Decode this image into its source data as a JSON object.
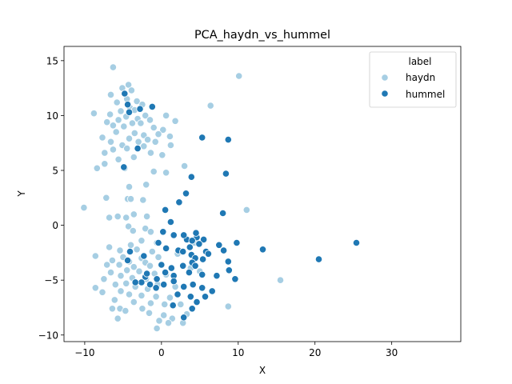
{
  "chart_data": {
    "type": "scatter",
    "title": "PCA_haydn_vs_hummel",
    "xlabel": "X",
    "ylabel": "Y",
    "xlim": [
      -12.7,
      39.0
    ],
    "ylim": [
      -10.6,
      16.3
    ],
    "xticks": [
      -10,
      0,
      10,
      20,
      30
    ],
    "yticks": [
      -10,
      -5,
      0,
      5,
      10,
      15
    ],
    "grid": false,
    "legend": {
      "title": "label",
      "placement": "top-right",
      "entries": [
        {
          "label": "haydn",
          "color": "#a6cee3"
        },
        {
          "label": "hummel",
          "color": "#1f78b4"
        }
      ]
    },
    "series": [
      {
        "name": "haydn",
        "color": "#a6cee3",
        "points": [
          [
            -6.3,
            14.4
          ],
          [
            10.1,
            13.6
          ],
          [
            -4.3,
            12.8
          ],
          [
            -5.1,
            12.5
          ],
          [
            -3.9,
            12.3
          ],
          [
            -4.8,
            12.0
          ],
          [
            -6.6,
            11.9
          ],
          [
            -4.5,
            11.5
          ],
          [
            -3.2,
            11.3
          ],
          [
            -5.8,
            11.2
          ],
          [
            -2.5,
            11.0
          ],
          [
            6.4,
            10.9
          ],
          [
            -4.1,
            10.7
          ],
          [
            -3.5,
            10.5
          ],
          [
            -5.3,
            10.4
          ],
          [
            -8.8,
            10.2
          ],
          [
            -6.7,
            10.1
          ],
          [
            -2.1,
            10.0
          ],
          [
            -4.6,
            9.9
          ],
          [
            -3.1,
            9.7
          ],
          [
            -5.6,
            9.6
          ],
          [
            -1.5,
            9.6
          ],
          [
            0.6,
            10.0
          ],
          [
            -7.1,
            9.4
          ],
          [
            -3.8,
            9.3
          ],
          [
            -2.7,
            9.3
          ],
          [
            1.8,
            9.5
          ],
          [
            -6.3,
            9.1
          ],
          [
            -4.9,
            9.0
          ],
          [
            -1.0,
            8.9
          ],
          [
            0.2,
            8.7
          ],
          [
            -5.9,
            8.5
          ],
          [
            -3.5,
            8.4
          ],
          [
            -2.3,
            8.2
          ],
          [
            -0.4,
            8.3
          ],
          [
            1.1,
            8.1
          ],
          [
            -7.7,
            8.0
          ],
          [
            -4.2,
            7.9
          ],
          [
            -1.8,
            7.8
          ],
          [
            -6.6,
            7.6
          ],
          [
            -3.0,
            7.6
          ],
          [
            -0.8,
            7.6
          ],
          [
            1.2,
            7.3
          ],
          [
            -5.1,
            7.3
          ],
          [
            -2.3,
            7.2
          ],
          [
            -4.5,
            7.0
          ],
          [
            -6.3,
            6.9
          ],
          [
            -7.4,
            6.6
          ],
          [
            -1.4,
            6.6
          ],
          [
            0.1,
            6.4
          ],
          [
            -3.6,
            6.2
          ],
          [
            -5.6,
            6.0
          ],
          [
            -7.4,
            5.6
          ],
          [
            -8.4,
            5.2
          ],
          [
            -4.8,
            5.2
          ],
          [
            -1.0,
            4.9
          ],
          [
            0.6,
            4.8
          ],
          [
            3.0,
            5.4
          ],
          [
            -4.2,
            3.5
          ],
          [
            -2.0,
            3.7
          ],
          [
            -4.4,
            2.4
          ],
          [
            -7.2,
            2.5
          ],
          [
            -2.4,
            2.3
          ],
          [
            -4.0,
            2.4
          ],
          [
            -10.1,
            1.6
          ],
          [
            11.1,
            1.4
          ],
          [
            -3.6,
            1.0
          ],
          [
            -6.8,
            0.7
          ],
          [
            -5.7,
            0.8
          ],
          [
            -4.6,
            0.7
          ],
          [
            -1.9,
            0.8
          ],
          [
            -4.3,
            -0.1
          ],
          [
            -2.1,
            -0.3
          ],
          [
            -3.7,
            -0.5
          ],
          [
            -1.4,
            -0.6
          ],
          [
            -2.6,
            -1.4
          ],
          [
            -0.6,
            -1.6
          ],
          [
            -4.0,
            -1.8
          ],
          [
            -6.8,
            -2.0
          ],
          [
            -5.4,
            -2.3
          ],
          [
            -3.2,
            -2.2
          ],
          [
            -1.2,
            -2.4
          ],
          [
            -8.6,
            -2.8
          ],
          [
            -5.0,
            -2.9
          ],
          [
            -2.6,
            -3.0
          ],
          [
            -0.4,
            -2.9
          ],
          [
            -6.4,
            -3.2
          ],
          [
            -4.2,
            -3.3
          ],
          [
            -2.1,
            -3.4
          ],
          [
            -7.1,
            -3.6
          ],
          [
            -5.5,
            -3.6
          ],
          [
            -3.6,
            -3.8
          ],
          [
            -1.5,
            -3.7
          ],
          [
            -4.5,
            -4.1
          ],
          [
            -2.9,
            -4.2
          ],
          [
            -6.6,
            -4.3
          ],
          [
            -0.9,
            -4.4
          ],
          [
            0.6,
            -4.5
          ],
          [
            -5.3,
            -4.6
          ],
          [
            -3.8,
            -4.8
          ],
          [
            -7.5,
            -4.9
          ],
          [
            -2.0,
            -4.9
          ],
          [
            -4.6,
            -5.3
          ],
          [
            -6.0,
            -5.4
          ],
          [
            -0.5,
            -5.4
          ],
          [
            1.8,
            -5.6
          ],
          [
            -3.4,
            -5.6
          ],
          [
            -1.8,
            -5.8
          ],
          [
            -8.6,
            -5.7
          ],
          [
            -5.3,
            -6.0
          ],
          [
            -7.7,
            -6.1
          ],
          [
            -4.2,
            -6.3
          ],
          [
            -2.6,
            -6.4
          ],
          [
            -0.7,
            -6.5
          ],
          [
            1.1,
            -6.6
          ],
          [
            -6.1,
            -6.8
          ],
          [
            -3.6,
            -7.0
          ],
          [
            -1.4,
            -7.1
          ],
          [
            0.4,
            -7.2
          ],
          [
            2.5,
            -7.2
          ],
          [
            -5.4,
            -7.6
          ],
          [
            -2.5,
            -7.6
          ],
          [
            -6.4,
            -7.6
          ],
          [
            -4.7,
            -7.8
          ],
          [
            -1.6,
            -8.0
          ],
          [
            0.3,
            -8.2
          ],
          [
            3.3,
            -8.1
          ],
          [
            -5.7,
            -8.5
          ],
          [
            -0.3,
            -8.7
          ],
          [
            1.4,
            -8.5
          ],
          [
            2.8,
            -8.9
          ],
          [
            -0.6,
            -9.4
          ],
          [
            0.9,
            -8.9
          ],
          [
            8.7,
            -7.4
          ],
          [
            15.5,
            -5.0
          ],
          [
            3.8,
            -3.9
          ],
          [
            5.0,
            -4.2
          ],
          [
            2.1,
            -2.6
          ],
          [
            4.3,
            -1.6
          ]
        ]
      },
      {
        "name": "hummel",
        "color": "#1f78b4",
        "points": [
          [
            -4.8,
            12.0
          ],
          [
            -4.4,
            11.0
          ],
          [
            -1.2,
            10.8
          ],
          [
            -2.8,
            10.6
          ],
          [
            -4.2,
            10.3
          ],
          [
            5.3,
            8.0
          ],
          [
            8.7,
            7.8
          ],
          [
            -3.1,
            7.0
          ],
          [
            8.4,
            4.7
          ],
          [
            -4.9,
            5.3
          ],
          [
            3.9,
            4.4
          ],
          [
            3.2,
            2.9
          ],
          [
            2.3,
            2.1
          ],
          [
            0.5,
            1.4
          ],
          [
            8.0,
            1.1
          ],
          [
            1.2,
            0.3
          ],
          [
            9.8,
            -1.6
          ],
          [
            25.4,
            -1.6
          ],
          [
            7.5,
            -1.8
          ],
          [
            13.2,
            -2.2
          ],
          [
            20.5,
            -3.1
          ],
          [
            3.3,
            -1.3
          ],
          [
            4.6,
            -1.1
          ],
          [
            5.5,
            -1.3
          ],
          [
            4.0,
            -1.4
          ],
          [
            0.2,
            -0.6
          ],
          [
            1.6,
            -0.9
          ],
          [
            2.9,
            -0.9
          ],
          [
            4.5,
            -0.7
          ],
          [
            4.9,
            -1.7
          ],
          [
            3.7,
            -2.0
          ],
          [
            2.2,
            -2.3
          ],
          [
            0.6,
            -2.1
          ],
          [
            -0.4,
            -1.6
          ],
          [
            5.8,
            -2.4
          ],
          [
            2.8,
            -2.4
          ],
          [
            3.9,
            -2.7
          ],
          [
            4.4,
            -3.0
          ],
          [
            4.0,
            -3.4
          ],
          [
            5.4,
            -3.1
          ],
          [
            8.1,
            -2.3
          ],
          [
            6.1,
            -2.6
          ],
          [
            8.7,
            -3.3
          ],
          [
            0.0,
            -3.6
          ],
          [
            1.3,
            -3.9
          ],
          [
            2.8,
            -3.7
          ],
          [
            4.4,
            -3.7
          ],
          [
            3.6,
            -4.3
          ],
          [
            5.3,
            -4.5
          ],
          [
            7.2,
            -4.6
          ],
          [
            8.8,
            -4.1
          ],
          [
            9.6,
            -4.9
          ],
          [
            1.6,
            -4.6
          ],
          [
            0.5,
            -4.3
          ],
          [
            -0.6,
            -4.9
          ],
          [
            -2.1,
            -4.7
          ],
          [
            -4.4,
            -3.2
          ],
          [
            -4.1,
            -2.4
          ],
          [
            -2.3,
            -2.8
          ],
          [
            -1.9,
            -4.4
          ],
          [
            -2.6,
            -5.2
          ],
          [
            -0.7,
            -5.7
          ],
          [
            0.3,
            -5.4
          ],
          [
            1.6,
            -5.1
          ],
          [
            2.9,
            -5.6
          ],
          [
            4.1,
            -5.4
          ],
          [
            5.3,
            -5.7
          ],
          [
            6.6,
            -6.0
          ],
          [
            2.1,
            -6.3
          ],
          [
            3.8,
            -6.5
          ],
          [
            4.6,
            -7.0
          ],
          [
            5.7,
            -6.5
          ],
          [
            4.0,
            -7.6
          ],
          [
            1.5,
            -7.3
          ],
          [
            2.9,
            -8.4
          ],
          [
            -3.4,
            -5.2
          ],
          [
            -1.5,
            -5.4
          ]
        ]
      }
    ]
  }
}
